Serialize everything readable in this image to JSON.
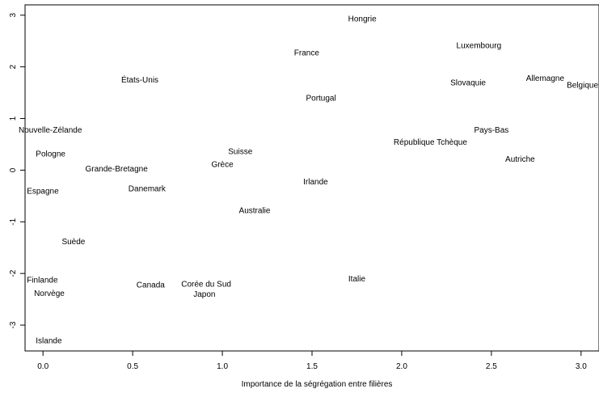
{
  "chart_data": {
    "type": "scatter",
    "title": "",
    "xlabel": "Importance de la ségrégation entre filières",
    "ylabel": "",
    "xlim": [
      -0.1,
      3.1
    ],
    "ylim": [
      -3.5,
      3.2
    ],
    "xticks": [
      "0.0",
      "0.5",
      "1.0",
      "1.5",
      "2.0",
      "2.5",
      "3.0"
    ],
    "yticks": [
      "-3",
      "-2",
      "-1",
      "0",
      "1",
      "2",
      "3"
    ],
    "grid": false,
    "points": [
      {
        "label": "Hongrie",
        "x": 1.78,
        "y": 2.93
      },
      {
        "label": "Luxembourg",
        "x": 2.43,
        "y": 2.42
      },
      {
        "label": "France",
        "x": 1.47,
        "y": 2.28
      },
      {
        "label": "Allemagne",
        "x": 2.8,
        "y": 1.78
      },
      {
        "label": "Belgique",
        "x": 2.98,
        "y": 1.65
      },
      {
        "label": "États-Unis",
        "x": 0.54,
        "y": 1.75
      },
      {
        "label": "Slovaquie",
        "x": 2.37,
        "y": 1.7
      },
      {
        "label": "Portugal",
        "x": 1.55,
        "y": 1.4
      },
      {
        "label": "Nouvelle-Zélande",
        "x": -0.1,
        "y": 0.78
      },
      {
        "label": "Pays-Bas",
        "x": 2.5,
        "y": 0.78
      },
      {
        "label": "République Tchèque",
        "x": 2.16,
        "y": 0.55
      },
      {
        "label": "Pologne",
        "x": 0.05,
        "y": 0.32
      },
      {
        "label": "Suisse",
        "x": 1.1,
        "y": 0.37
      },
      {
        "label": "Autriche",
        "x": 2.66,
        "y": 0.22
      },
      {
        "label": "Grèce",
        "x": 1.0,
        "y": 0.12
      },
      {
        "label": "Grande-Bretagne",
        "x": 0.41,
        "y": 0.03
      },
      {
        "label": "Irlande",
        "x": 1.52,
        "y": -0.22
      },
      {
        "label": "Danemark",
        "x": 0.58,
        "y": -0.35
      },
      {
        "label": "Espagne",
        "x": 0.0,
        "y": -0.4
      },
      {
        "label": "Australie",
        "x": 1.18,
        "y": -0.78
      },
      {
        "label": "Suède",
        "x": 0.17,
        "y": -1.38
      },
      {
        "label": "Italie",
        "x": 1.75,
        "y": -2.1
      },
      {
        "label": "Finlande",
        "x": 0.0,
        "y": -2.12
      },
      {
        "label": "Corée du Sud",
        "x": 0.91,
        "y": -2.2
      },
      {
        "label": "Canada",
        "x": 0.6,
        "y": -2.22
      },
      {
        "label": "Norvège",
        "x": 0.04,
        "y": -2.38
      },
      {
        "label": "Japon",
        "x": 0.9,
        "y": -2.4
      },
      {
        "label": "Islande",
        "x": 0.05,
        "y": -3.3
      }
    ]
  }
}
